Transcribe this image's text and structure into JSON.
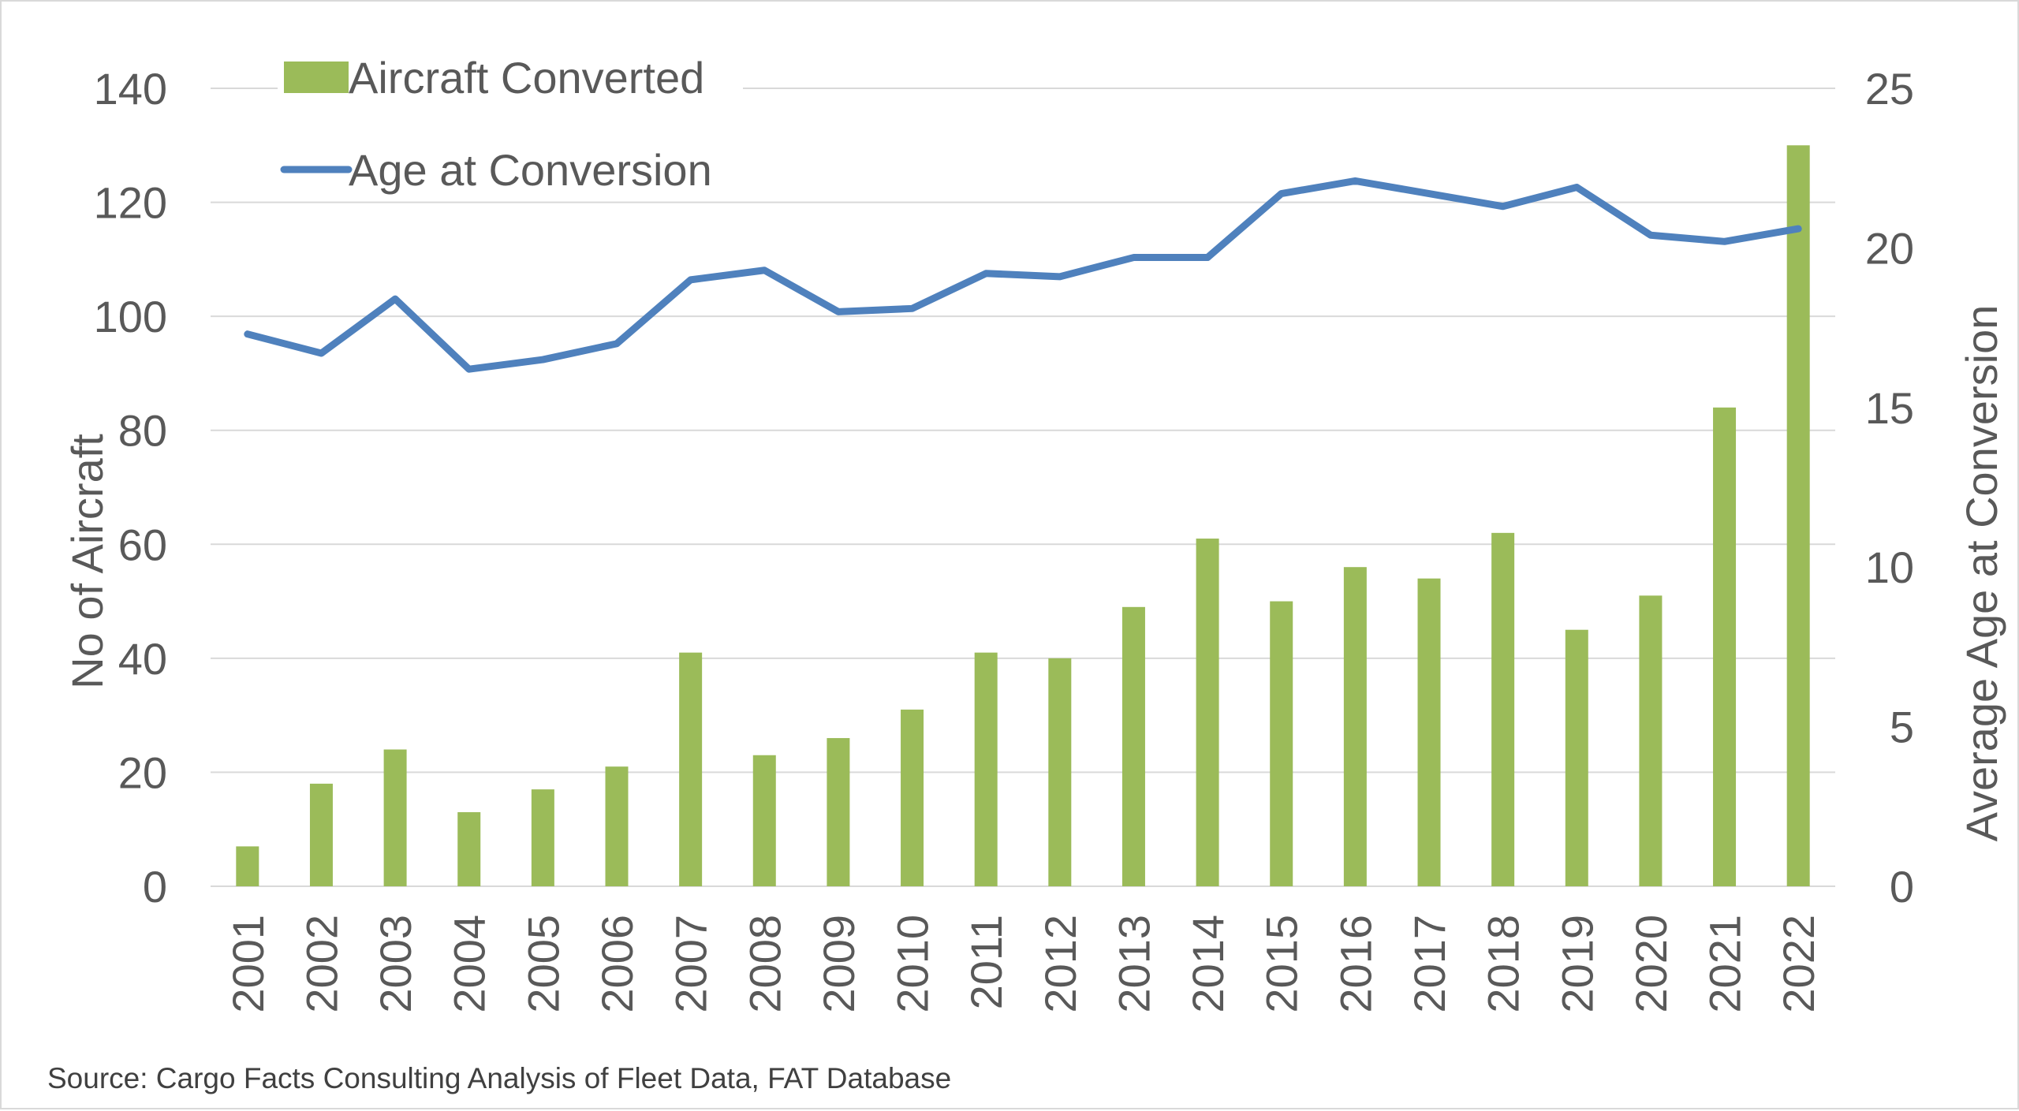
{
  "chart_data": {
    "type": "bar",
    "categories": [
      "2001",
      "2002",
      "2003",
      "2004",
      "2005",
      "2006",
      "2007",
      "2008",
      "2009",
      "2010",
      "2011",
      "2012",
      "2013",
      "2014",
      "2015",
      "2016",
      "2017",
      "2018",
      "2019",
      "2020",
      "2021",
      "2022"
    ],
    "series": [
      {
        "name": "Aircraft Converted",
        "type": "bar",
        "axis": "left",
        "color": "#9bbb59",
        "values": [
          7,
          18,
          24,
          13,
          17,
          21,
          41,
          23,
          26,
          31,
          41,
          40,
          49,
          61,
          50,
          56,
          54,
          62,
          45,
          51,
          84,
          130
        ]
      },
      {
        "name": "Age at Conversion",
        "type": "line",
        "axis": "right",
        "color": "#4f81bd",
        "values": [
          17.3,
          16.7,
          18.4,
          16.2,
          16.5,
          17.0,
          19.0,
          19.3,
          18.0,
          18.1,
          19.2,
          19.1,
          19.7,
          19.7,
          21.7,
          22.1,
          21.7,
          21.3,
          21.9,
          20.4,
          20.2,
          20.6
        ]
      }
    ],
    "ylabel": "No of Aircraft",
    "ylabel_right": "Average Age at Conversion",
    "ylim": [
      0,
      140
    ],
    "ylim_right": [
      0,
      25
    ],
    "yticks": [
      "0",
      "20",
      "40",
      "60",
      "80",
      "100",
      "120",
      "140"
    ],
    "yticks_right": [
      "0",
      "5",
      "10",
      "15",
      "20",
      "25"
    ],
    "grid": true,
    "legend_position": "top-left",
    "colors": {
      "bar": "#9bbb59",
      "line": "#4f81bd",
      "grid": "#d9d9d9",
      "text": "#595959"
    }
  },
  "source": "Source: Cargo Facts Consulting Analysis of Fleet Data, FAT Database"
}
